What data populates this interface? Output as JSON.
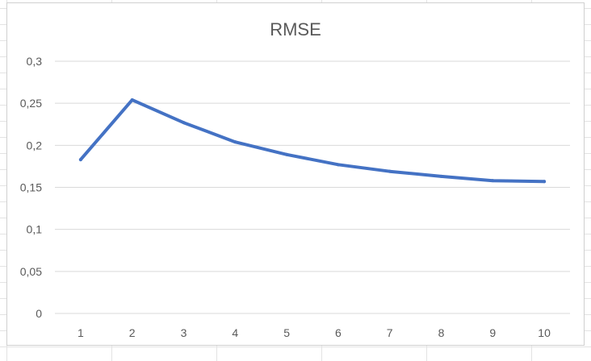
{
  "chart_data": {
    "type": "line",
    "title": "RMSE",
    "xlabel": "",
    "ylabel": "",
    "x": [
      1,
      2,
      3,
      4,
      5,
      6,
      7,
      8,
      9,
      10
    ],
    "x_tick_labels": [
      "1",
      "2",
      "3",
      "4",
      "5",
      "6",
      "7",
      "8",
      "9",
      "10"
    ],
    "series": [
      {
        "values": [
          0.183,
          0.254,
          0.227,
          0.204,
          0.189,
          0.177,
          0.169,
          0.163,
          0.158,
          0.157
        ],
        "color": "#4472C4"
      }
    ],
    "ylim": [
      0,
      0.3
    ],
    "y_ticks": [
      0,
      0.05,
      0.1,
      0.15,
      0.2,
      0.25,
      0.3
    ],
    "y_tick_labels": [
      "0",
      "0,05",
      "0,1",
      "0,15",
      "0,2",
      "0,25",
      "0,3"
    ],
    "grid": true,
    "legend": "none",
    "colors": {
      "line": "#4472C4",
      "grid": "#d9d9d9",
      "text": "#595959"
    }
  }
}
